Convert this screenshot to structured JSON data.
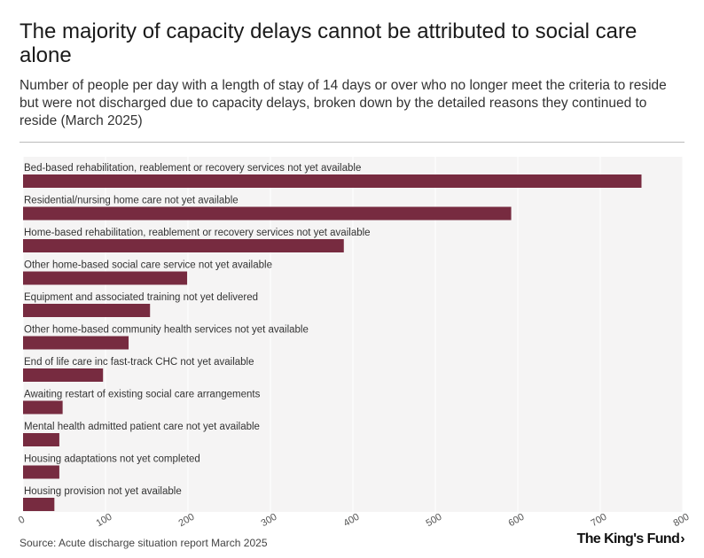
{
  "header": {
    "title": "The majority of capacity delays cannot be attributed to social care alone",
    "subtitle": "Number of people per day with a length of stay of 14 days or over who no longer meet the criteria to reside but were not discharged due to capacity delays, broken down by the detailed reasons they continued to reside (March 2025)"
  },
  "footer": {
    "source": "Source: Acute discharge situation report March 2025",
    "brand": "The King's Fund",
    "brand_mark": "›"
  },
  "colors": {
    "bar": "#772b40",
    "plot_bg": "#f5f4f4",
    "grid": "#ffffff"
  },
  "chart_data": {
    "type": "bar",
    "orientation": "horizontal",
    "title": "The majority of capacity delays cannot be attributed to social care alone",
    "xlabel": "",
    "ylabel": "",
    "xlim": [
      0,
      800
    ],
    "xticks": [
      0,
      100,
      200,
      300,
      400,
      500,
      600,
      700,
      800
    ],
    "categories": [
      "Bed-based rehabilitation, reablement or recovery services not yet available",
      "Residential/nursing home care not yet available",
      "Home-based rehabilitation, reablement or recovery services not yet available",
      "Other home-based social care service not yet available",
      "Equipment and associated training not yet delivered",
      "Other home-based community health services not yet available",
      "End of life care inc fast-track CHC not yet available",
      "Awaiting restart of existing social care arrangements",
      "Mental health admitted patient care not yet available",
      "Housing adaptations not yet completed",
      "Housing provision not yet available"
    ],
    "values": [
      750,
      592,
      389,
      199,
      154,
      128,
      97,
      48,
      44,
      44,
      38
    ]
  }
}
